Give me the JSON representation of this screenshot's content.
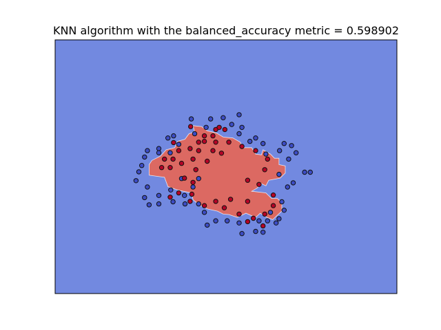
{
  "chart_data": {
    "type": "scatter",
    "title": "KNN algorithm with the balanced_accuracy metric = 0.598902",
    "xlabel": "",
    "ylabel": "",
    "xlim": [
      -3.0,
      3.0
    ],
    "ylim": [
      -3.0,
      3.0
    ],
    "grid": false,
    "axis_ticks": false,
    "colors": {
      "background_region": "#7289e0",
      "decision_region": "#dc6962",
      "class_0_points": "#3c4cc4",
      "class_1_points": "#b40426",
      "point_edge": "#111111"
    },
    "decision_region_outline": [
      [
        -0.58,
        0.97
      ],
      [
        -0.43,
        0.95
      ],
      [
        -0.33,
        0.85
      ],
      [
        -0.17,
        0.8
      ],
      [
        -0.05,
        0.7
      ],
      [
        0.12,
        0.68
      ],
      [
        0.25,
        0.58
      ],
      [
        0.3,
        0.45
      ],
      [
        0.45,
        0.45
      ],
      [
        0.52,
        0.3
      ],
      [
        0.62,
        0.28
      ],
      [
        0.65,
        0.4
      ],
      [
        0.78,
        0.3
      ],
      [
        0.85,
        0.2
      ],
      [
        0.93,
        0.2
      ],
      [
        0.93,
        0.05
      ],
      [
        1.04,
        0.02
      ],
      [
        1.04,
        -0.15
      ],
      [
        0.95,
        -0.27
      ],
      [
        0.75,
        -0.32
      ],
      [
        0.7,
        -0.45
      ],
      [
        0.62,
        -0.4
      ],
      [
        0.55,
        -0.5
      ],
      [
        0.45,
        -0.58
      ],
      [
        0.7,
        -0.62
      ],
      [
        0.8,
        -0.75
      ],
      [
        0.9,
        -0.75
      ],
      [
        0.98,
        -0.85
      ],
      [
        0.98,
        -1.05
      ],
      [
        0.9,
        -1.15
      ],
      [
        0.82,
        -1.25
      ],
      [
        0.72,
        -1.2
      ],
      [
        0.6,
        -1.1
      ],
      [
        0.52,
        -1.2
      ],
      [
        0.35,
        -1.1
      ],
      [
        0.2,
        -1.2
      ],
      [
        0.05,
        -1.13
      ],
      [
        -0.05,
        -1.12
      ],
      [
        -0.15,
        -1.05
      ],
      [
        -0.32,
        -1.0
      ],
      [
        -0.45,
        -0.92
      ],
      [
        -0.58,
        -0.78
      ],
      [
        -0.6,
        -0.62
      ],
      [
        -0.75,
        -0.58
      ],
      [
        -0.85,
        -0.55
      ],
      [
        -1.02,
        -0.47
      ],
      [
        -1.08,
        -0.25
      ],
      [
        -1.25,
        -0.22
      ],
      [
        -1.35,
        -0.2
      ],
      [
        -1.35,
        0.05
      ],
      [
        -1.3,
        0.15
      ],
      [
        -1.15,
        0.25
      ],
      [
        -1.05,
        0.4
      ],
      [
        -0.9,
        0.45
      ],
      [
        -0.85,
        0.6
      ],
      [
        -0.72,
        0.65
      ],
      [
        -0.65,
        0.78
      ],
      [
        -0.55,
        0.82
      ]
    ],
    "series": [
      {
        "values": [
          [
            -0.61,
            1.13
          ],
          [
            -0.27,
            1.13
          ],
          [
            -0.05,
            1.16
          ],
          [
            0.1,
            1.0
          ],
          [
            0.23,
            1.23
          ],
          [
            0.28,
            0.93
          ],
          [
            0.52,
            0.68
          ],
          [
            0.65,
            0.55
          ],
          [
            0.94,
            0.38
          ],
          [
            1.02,
            0.55
          ],
          [
            -0.92,
            0.73
          ],
          [
            -1.02,
            0.68
          ],
          [
            -0.55,
            0.78
          ],
          [
            -0.35,
            0.93
          ],
          [
            -0.83,
            0.53
          ],
          [
            -1.18,
            0.43
          ],
          [
            -1.38,
            0.38
          ],
          [
            -1.43,
            0.23
          ],
          [
            -1.18,
            0.33
          ],
          [
            -1.48,
            0.03
          ],
          [
            -1.53,
            -0.12
          ],
          [
            -1.58,
            -0.33
          ],
          [
            -1.38,
            -0.48
          ],
          [
            -1.43,
            -0.73
          ],
          [
            -1.18,
            -0.68
          ],
          [
            -1.18,
            -0.88
          ],
          [
            -0.93,
            -0.83
          ],
          [
            -0.73,
            -0.68
          ],
          [
            -0.78,
            -0.28
          ],
          [
            -0.58,
            -0.48
          ],
          [
            -0.48,
            -0.88
          ],
          [
            -0.38,
            -1.08
          ],
          [
            -0.33,
            -1.38
          ],
          [
            -0.18,
            -1.28
          ],
          [
            0.02,
            -1.28
          ],
          [
            0.23,
            -1.33
          ],
          [
            0.28,
            -1.58
          ],
          [
            0.52,
            -1.53
          ],
          [
            0.58,
            -1.28
          ],
          [
            0.73,
            -1.28
          ],
          [
            0.88,
            -1.33
          ],
          [
            0.93,
            -1.23
          ],
          [
            0.78,
            -1.08
          ],
          [
            1.02,
            -1.03
          ],
          [
            0.98,
            -0.83
          ],
          [
            1.08,
            -0.48
          ],
          [
            1.18,
            -0.38
          ],
          [
            1.38,
            -0.13
          ],
          [
            1.48,
            -0.13
          ],
          [
            1.1,
            0.18
          ],
          [
            1.23,
            0.33
          ],
          [
            1.15,
            0.5
          ],
          [
            -0.97,
            -0.55
          ],
          [
            -0.72,
            -0.88
          ],
          [
            -0.48,
            -0.28
          ],
          [
            0.93,
            -0.18
          ],
          [
            0.7,
            0.3
          ],
          [
            0.42,
            0.6
          ],
          [
            0.23,
            0.78
          ],
          [
            -0.98,
            0.33
          ],
          [
            -1.35,
            -0.9
          ],
          [
            0.65,
            -1.55
          ]
        ]
      },
      {
        "values": [
          [
            -0.48,
            0.58
          ],
          [
            -0.38,
            0.73
          ],
          [
            -0.23,
            0.73
          ],
          [
            -0.18,
            0.58
          ],
          [
            -0.23,
            0.38
          ],
          [
            -0.48,
            0.38
          ],
          [
            -0.63,
            0.43
          ],
          [
            -0.83,
            0.38
          ],
          [
            -0.93,
            0.18
          ],
          [
            -1.08,
            0.18
          ],
          [
            -1.13,
            -0.02
          ],
          [
            -0.98,
            -0.02
          ],
          [
            -0.78,
            0.08
          ],
          [
            -0.58,
            0.18
          ],
          [
            -0.33,
            0.13
          ],
          [
            -0.53,
            -0.07
          ],
          [
            -0.58,
            -0.37
          ],
          [
            -0.73,
            -0.27
          ],
          [
            -0.83,
            -0.62
          ],
          [
            -0.98,
            -0.72
          ],
          [
            -0.63,
            -0.82
          ],
          [
            -0.38,
            -0.92
          ],
          [
            -0.18,
            -0.82
          ],
          [
            0.08,
            -0.77
          ],
          [
            0.38,
            -0.82
          ],
          [
            0.23,
            -1.12
          ],
          [
            -0.03,
            -0.97
          ],
          [
            0.48,
            -1.22
          ],
          [
            0.68,
            -1.12
          ],
          [
            0.83,
            -0.92
          ],
          [
            0.83,
            -0.67
          ],
          [
            0.38,
            -0.32
          ],
          [
            0.58,
            -0.42
          ],
          [
            0.68,
            -0.07
          ],
          [
            0.73,
            0.18
          ],
          [
            0.52,
            0.38
          ],
          [
            0.28,
            0.48
          ],
          [
            0.05,
            0.58
          ],
          [
            -0.02,
            0.88
          ],
          [
            -0.18,
            0.88
          ],
          [
            -0.12,
            0.93
          ],
          [
            -0.38,
            0.6
          ],
          [
            -0.08,
            0.32
          ],
          [
            -0.62,
            0.95
          ],
          [
            -0.92,
            0.57
          ],
          [
            -0.6,
            -0.65
          ],
          [
            0.65,
            -1.4
          ],
          [
            0.38,
            -1.3
          ]
        ]
      }
    ]
  }
}
